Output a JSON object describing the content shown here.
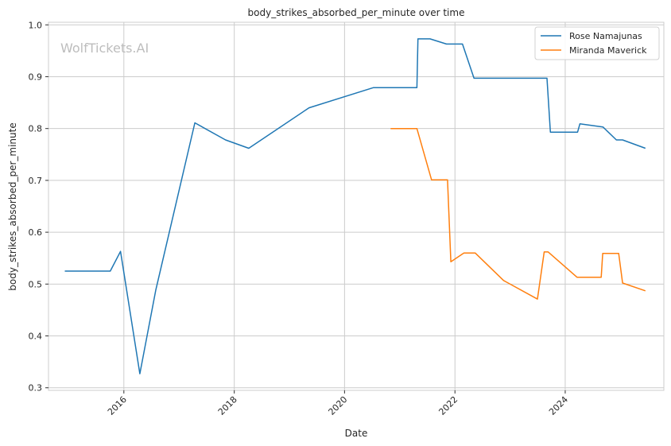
{
  "chart_data": {
    "type": "line",
    "title": "body_strikes_absorbed_per_minute over time",
    "xlabel": "Date",
    "ylabel": "body_strikes_absorbed_per_minute",
    "watermark": "WolfTickets.AI",
    "xlim": [
      "2014-08-20",
      "2025-10-15"
    ],
    "ylim": [
      0.295,
      1.005
    ],
    "x_ticks": [
      "2016",
      "2018",
      "2020",
      "2022",
      "2024"
    ],
    "y_ticks": [
      "0.3",
      "0.4",
      "0.5",
      "0.6",
      "0.7",
      "0.8",
      "0.9",
      "1.0"
    ],
    "grid": true,
    "legend_position": "top-right",
    "series": [
      {
        "name": "Rose Namajunas",
        "color": "#1f77b4",
        "points": [
          [
            "2014-12-06",
            0.525
          ],
          [
            "2015-10-03",
            0.525
          ],
          [
            "2015-12-10",
            0.563
          ],
          [
            "2016-04-16",
            0.327
          ],
          [
            "2016-07-30",
            0.488
          ],
          [
            "2017-04-15",
            0.811
          ],
          [
            "2017-11-04",
            0.778
          ],
          [
            "2018-04-07",
            0.762
          ],
          [
            "2019-05-11",
            0.84
          ],
          [
            "2020-07-11",
            0.879
          ],
          [
            "2021-04-24",
            0.879
          ],
          [
            "2021-05-01",
            0.973
          ],
          [
            "2021-07-20",
            0.973
          ],
          [
            "2021-11-06",
            0.963
          ],
          [
            "2022-02-20",
            0.963
          ],
          [
            "2022-05-07",
            0.897
          ],
          [
            "2023-09-02",
            0.897
          ],
          [
            "2023-09-25",
            0.793
          ],
          [
            "2024-03-23",
            0.793
          ],
          [
            "2024-04-07",
            0.809
          ],
          [
            "2024-09-07",
            0.803
          ],
          [
            "2024-12-05",
            0.778
          ],
          [
            "2025-01-15",
            0.778
          ],
          [
            "2025-06-15",
            0.762
          ]
        ]
      },
      {
        "name": "Miranda Maverick",
        "color": "#ff7f0e",
        "points": [
          [
            "2020-11-01",
            0.8
          ],
          [
            "2021-04-24",
            0.8
          ],
          [
            "2021-07-30",
            0.701
          ],
          [
            "2021-11-13",
            0.701
          ],
          [
            "2021-12-05",
            0.543
          ],
          [
            "2022-03-01",
            0.56
          ],
          [
            "2022-05-15",
            0.56
          ],
          [
            "2022-11-19",
            0.507
          ],
          [
            "2023-07-01",
            0.471
          ],
          [
            "2023-08-15",
            0.562
          ],
          [
            "2023-09-10",
            0.562
          ],
          [
            "2024-03-20",
            0.513
          ],
          [
            "2024-08-26",
            0.513
          ],
          [
            "2024-09-05",
            0.559
          ],
          [
            "2024-12-20",
            0.559
          ],
          [
            "2025-01-15",
            0.502
          ],
          [
            "2025-06-15",
            0.487
          ]
        ]
      }
    ]
  }
}
